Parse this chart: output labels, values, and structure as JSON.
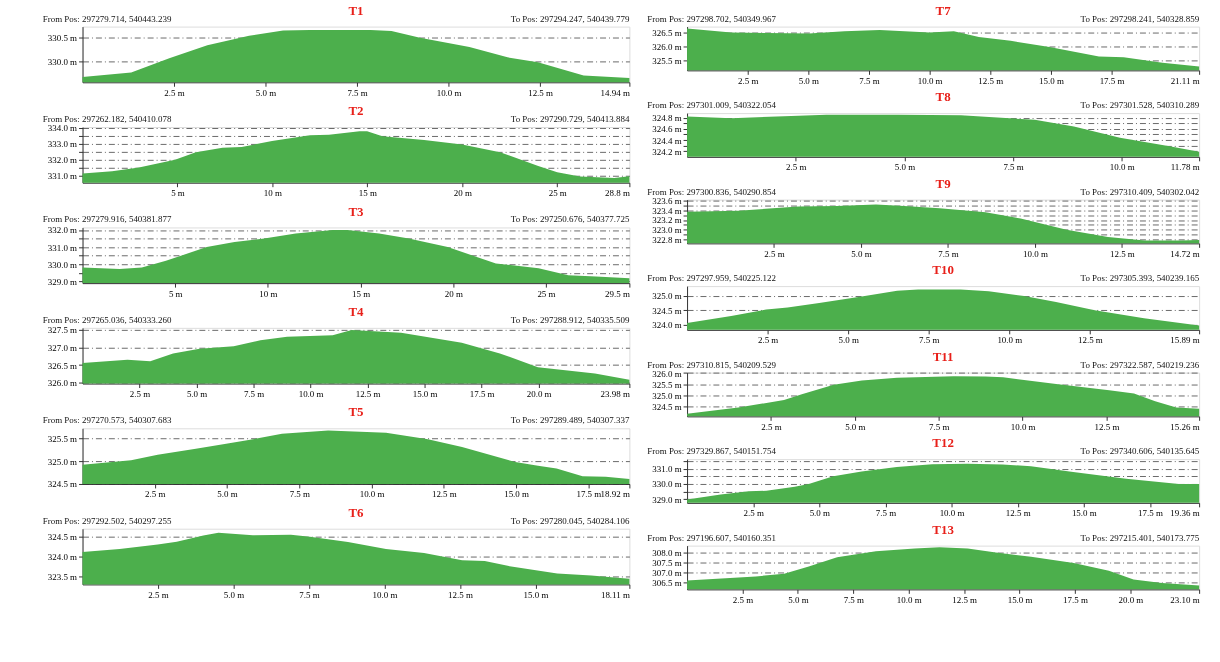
{
  "chart_data": [
    {
      "type": "area",
      "title": "T1",
      "annotations": [
        "From Pos: 297279.714, 540443.239",
        "To Pos: 297294.247, 540439.779"
      ],
      "x": [
        0,
        1.33,
        2.37,
        3.41,
        4.55,
        5.48,
        6.21,
        7.87,
        8.44,
        9.22,
        10.57,
        11.61,
        12.44,
        13.69,
        14.94
      ],
      "series": [
        {
          "color": "#4caf4c",
          "values": [
            329.69,
            329.78,
            330.07,
            330.34,
            330.53,
            330.64,
            330.65,
            330.65,
            330.63,
            330.49,
            330.3,
            330.09,
            329.99,
            329.72,
            329.67
          ]
        }
      ],
      "xlim": [
        0,
        14.94
      ],
      "xticks": [
        {
          "value": 2.5,
          "label": "2.5 m"
        },
        {
          "value": 5,
          "label": "5.0 m"
        },
        {
          "value": 7.5,
          "label": "7.5 m"
        },
        {
          "value": 10,
          "label": "10.0 m"
        },
        {
          "value": 12.5,
          "label": "12.5 m"
        },
        {
          "value": 14.94,
          "label": "14.94 m"
        }
      ],
      "ylim": [
        329.58,
        330.72
      ],
      "yticks": [
        {
          "value": 330.0,
          "label": "330.0 m"
        },
        {
          "value": 330.5,
          "label": "330.5 m"
        }
      ],
      "grid": "y"
    },
    {
      "type": "area",
      "title": "T2",
      "annotations": [
        "From Pos: 297262.182, 540410.078",
        "To Pos: 297290.729, 540413.884"
      ],
      "x": [
        0,
        1.56,
        2.97,
        4.87,
        5.97,
        7.37,
        8.38,
        9.98,
        11.98,
        12.98,
        14.59,
        14.99,
        15.79,
        17.99,
        19.99,
        21.99,
        24.0,
        25.0,
        26.2,
        28.0,
        28.8
      ],
      "series": [
        {
          "color": "#4caf4c",
          "values": [
            331.15,
            331.28,
            331.52,
            332.0,
            332.48,
            332.76,
            332.8,
            333.17,
            333.54,
            333.57,
            333.78,
            333.78,
            333.48,
            333.24,
            332.96,
            332.48,
            331.61,
            331.22,
            330.96,
            330.87,
            330.98
          ]
        }
      ],
      "xlim": [
        0,
        28.8
      ],
      "xticks": [
        {
          "value": 5,
          "label": "5 m"
        },
        {
          "value": 10,
          "label": "10 m"
        },
        {
          "value": 15,
          "label": "15 m"
        },
        {
          "value": 20,
          "label": "20 m"
        },
        {
          "value": 25,
          "label": "25 m"
        },
        {
          "value": 28.8,
          "label": "28.8 m"
        }
      ],
      "ylim": [
        330.57,
        334.05
      ],
      "yticks": [
        {
          "value": 331.0,
          "label": "331.0 m"
        },
        {
          "value": 331.5,
          "label": null
        },
        {
          "value": 332.0,
          "label": "332.0 m"
        },
        {
          "value": 332.5,
          "label": null
        },
        {
          "value": 333.0,
          "label": "333.0 m"
        },
        {
          "value": 333.5,
          "label": null
        },
        {
          "value": 334.0,
          "label": "334.0 m"
        }
      ],
      "grid": "y"
    },
    {
      "type": "area",
      "title": "T3",
      "annotations": [
        "From Pos: 297279.916, 540381.877",
        "To Pos: 297250.676, 540377.725"
      ],
      "x": [
        0,
        2.0,
        3.2,
        4.5,
        6.7,
        8.2,
        9.8,
        11.5,
        13.5,
        14.3,
        16.0,
        17.6,
        19.7,
        22.3,
        24.6,
        26.2,
        27.7,
        29.5
      ],
      "series": [
        {
          "color": "#4caf4c",
          "values": [
            329.8,
            329.72,
            329.8,
            330.2,
            331.0,
            331.3,
            331.5,
            331.8,
            332.0,
            332.0,
            331.8,
            331.5,
            331.0,
            330.04,
            329.76,
            329.35,
            329.28,
            329.17
          ]
        }
      ],
      "xlim": [
        0,
        29.5
      ],
      "xticks": [
        {
          "value": 5,
          "label": "5 m"
        },
        {
          "value": 10,
          "label": "10 m"
        },
        {
          "value": 15,
          "label": "15 m"
        },
        {
          "value": 20,
          "label": "20 m"
        },
        {
          "value": 25,
          "label": "25 m"
        },
        {
          "value": 29.5,
          "label": "29.5 m"
        }
      ],
      "ylim": [
        328.89,
        332.15
      ],
      "yticks": [
        {
          "value": 329.0,
          "label": "329.0 m"
        },
        {
          "value": 329.5,
          "label": null
        },
        {
          "value": 330.0,
          "label": "330.0 m"
        },
        {
          "value": 330.5,
          "label": null
        },
        {
          "value": 331.0,
          "label": "331.0 m"
        },
        {
          "value": 331.5,
          "label": null
        },
        {
          "value": 332.0,
          "label": "332.0 m"
        }
      ],
      "grid": "y"
    },
    {
      "type": "area",
      "title": "T4",
      "annotations": [
        "From Pos: 297265.036, 540333.260",
        "To Pos: 297288.912, 540335.509"
      ],
      "x": [
        0,
        1.97,
        2.97,
        3.97,
        5.13,
        6.63,
        7.8,
        8.97,
        10.97,
        11.8,
        13.97,
        16.63,
        18.3,
        19.97,
        22.47,
        23.98
      ],
      "series": [
        {
          "color": "#4caf4c",
          "values": [
            326.56,
            326.65,
            326.61,
            326.83,
            326.96,
            327.03,
            327.2,
            327.3,
            327.34,
            327.49,
            327.41,
            327.13,
            326.83,
            326.44,
            326.26,
            326.09
          ]
        }
      ],
      "xlim": [
        0,
        23.98
      ],
      "xticks": [
        {
          "value": 2.5,
          "label": "2.5 m"
        },
        {
          "value": 5,
          "label": "5.0 m"
        },
        {
          "value": 7.5,
          "label": "7.5 m"
        },
        {
          "value": 10,
          "label": "10.0 m"
        },
        {
          "value": 12.5,
          "label": "12.5 m"
        },
        {
          "value": 15,
          "label": "15.0 m"
        },
        {
          "value": 17.5,
          "label": "17.5 m"
        },
        {
          "value": 20,
          "label": "20.0 m"
        },
        {
          "value": 23.98,
          "label": "23.98 m"
        }
      ],
      "ylim": [
        325.98,
        327.55
      ],
      "yticks": [
        {
          "value": 326.0,
          "label": "326.0 m"
        },
        {
          "value": 326.5,
          "label": "326.5 m"
        },
        {
          "value": 327.0,
          "label": "327.0 m"
        },
        {
          "value": 327.5,
          "label": "327.5 m"
        }
      ],
      "grid": "y"
    },
    {
      "type": "area",
      "title": "T5",
      "annotations": [
        "From Pos: 297270.573, 540307.683",
        "To Pos: 297289.489, 540307.337"
      ],
      "x": [
        0,
        1.68,
        2.6,
        3.92,
        4.97,
        5.9,
        6.9,
        8.5,
        10.5,
        11.95,
        13.13,
        14.97,
        15.76,
        16.4,
        17.3,
        18.1,
        18.92
      ],
      "series": [
        {
          "color": "#4caf4c",
          "values": [
            324.92,
            325.02,
            325.14,
            325.27,
            325.38,
            325.48,
            325.6,
            325.67,
            325.62,
            325.48,
            325.31,
            324.98,
            324.9,
            324.84,
            324.67,
            324.66,
            324.61
          ]
        }
      ],
      "xlim": [
        0,
        18.92
      ],
      "xticks": [
        {
          "value": 2.5,
          "label": "2.5 m"
        },
        {
          "value": 5,
          "label": "5.0 m"
        },
        {
          "value": 7.5,
          "label": "7.5 m"
        },
        {
          "value": 10,
          "label": "10.0 m"
        },
        {
          "value": 12.5,
          "label": "12.5 m"
        },
        {
          "value": 15,
          "label": "15.0 m"
        },
        {
          "value": 17.5,
          "label": "17.5 m"
        },
        {
          "value": 18.92,
          "label": "18.92 m"
        }
      ],
      "ylim": [
        324.5,
        325.72
      ],
      "yticks": [
        {
          "value": 324.5,
          "label": "324.5 m"
        },
        {
          "value": 325.0,
          "label": "325.0 m"
        },
        {
          "value": 325.5,
          "label": "325.5 m"
        }
      ],
      "grid": "y"
    },
    {
      "type": "area",
      "title": "T6",
      "annotations": [
        "From Pos: 297292.502, 540297.255",
        "To Pos: 297280.045, 540284.106"
      ],
      "x": [
        0,
        1.23,
        2.49,
        3.12,
        4.0,
        4.5,
        5.64,
        6.9,
        7.53,
        8.79,
        10.05,
        11.31,
        12.57,
        13.32,
        14.08,
        15.72,
        16.85,
        17.61,
        18.11
      ],
      "series": [
        {
          "color": "#4caf4c",
          "values": [
            324.11,
            324.19,
            324.3,
            324.37,
            324.52,
            324.59,
            324.53,
            324.54,
            324.49,
            324.36,
            324.19,
            324.09,
            323.91,
            323.89,
            323.77,
            323.58,
            323.53,
            323.48,
            323.45
          ]
        }
      ],
      "xlim": [
        0,
        18.11
      ],
      "xticks": [
        {
          "value": 2.5,
          "label": "2.5 m"
        },
        {
          "value": 5,
          "label": "5.0 m"
        },
        {
          "value": 7.5,
          "label": "7.5 m"
        },
        {
          "value": 10,
          "label": "10.0 m"
        },
        {
          "value": 12.5,
          "label": "12.5 m"
        },
        {
          "value": 15,
          "label": "15.0 m"
        },
        {
          "value": 18.11,
          "label": "18.11 m"
        }
      ],
      "ylim": [
        323.31,
        324.69
      ],
      "yticks": [
        {
          "value": 323.5,
          "label": "323.5 m"
        },
        {
          "value": 324.0,
          "label": "324.0 m"
        },
        {
          "value": 324.5,
          "label": "324.5 m"
        }
      ],
      "grid": "y"
    },
    {
      "type": "area",
      "title": "T7",
      "annotations": [
        "From Pos: 297298.702, 540349.967",
        "To Pos: 297298.241, 540328.859"
      ],
      "x": [
        0,
        1.82,
        3.28,
        5.03,
        6.49,
        7.94,
        9.99,
        11.0,
        12.03,
        13.34,
        14.94,
        16.98,
        18.0,
        19.6,
        21.11
      ],
      "series": [
        {
          "color": "#4caf4c",
          "values": [
            326.66,
            326.52,
            326.5,
            326.48,
            326.56,
            326.61,
            326.52,
            326.56,
            326.36,
            326.22,
            326.0,
            325.66,
            325.63,
            325.43,
            325.3
          ]
        }
      ],
      "xlim": [
        0,
        21.11
      ],
      "xticks": [
        {
          "value": 2.5,
          "label": "2.5 m"
        },
        {
          "value": 5,
          "label": "5.0 m"
        },
        {
          "value": 7.5,
          "label": "7.5 m"
        },
        {
          "value": 10,
          "label": "10.0 m"
        },
        {
          "value": 12.5,
          "label": "12.5 m"
        },
        {
          "value": 15,
          "label": "15.0 m"
        },
        {
          "value": 17.5,
          "label": "17.5 m"
        },
        {
          "value": 21.11,
          "label": "21.11 m"
        }
      ],
      "ylim": [
        325.16,
        326.73
      ],
      "yticks": [
        {
          "value": 325.5,
          "label": "325.5 m"
        },
        {
          "value": 326.0,
          "label": "326.0 m"
        },
        {
          "value": 326.5,
          "label": "326.5 m"
        }
      ],
      "grid": "y"
    },
    {
      "type": "area",
      "title": "T8",
      "annotations": [
        "From Pos: 297301.009, 540322.054",
        "To Pos: 297301.528, 540310.289"
      ],
      "x": [
        0,
        1.02,
        2.4,
        3.21,
        4.84,
        6.3,
        6.95,
        8.0,
        8.9,
        9.96,
        11.1,
        11.78
      ],
      "series": [
        {
          "color": "#4caf4c",
          "values": [
            324.82,
            324.79,
            324.83,
            324.85,
            324.85,
            324.84,
            324.81,
            324.76,
            324.64,
            324.44,
            324.29,
            324.19
          ]
        }
      ],
      "xlim": [
        0,
        11.78
      ],
      "xticks": [
        {
          "value": 2.5,
          "label": "2.5 m"
        },
        {
          "value": 5,
          "label": "5.0 m"
        },
        {
          "value": 7.5,
          "label": "7.5 m"
        },
        {
          "value": 10,
          "label": "10.0 m"
        },
        {
          "value": 11.78,
          "label": "11.78 m"
        }
      ],
      "ylim": [
        324.1,
        324.88
      ],
      "yticks": [
        {
          "value": 324.2,
          "label": "324.2 m"
        },
        {
          "value": 324.3,
          "label": null
        },
        {
          "value": 324.4,
          "label": "324.4 m"
        },
        {
          "value": 324.5,
          "label": null
        },
        {
          "value": 324.6,
          "label": "324.6 m"
        },
        {
          "value": 324.7,
          "label": null
        },
        {
          "value": 324.8,
          "label": "324.8 m"
        }
      ],
      "grid": "y"
    },
    {
      "type": "area",
      "title": "T9",
      "annotations": [
        "From Pos: 297300.836, 540290.854",
        "To Pos: 297310.409, 540302.042"
      ],
      "x": [
        0,
        1.47,
        3.2,
        4.31,
        5.43,
        6.24,
        7.26,
        8.58,
        9.59,
        10.91,
        12.1,
        13.15,
        14.2,
        14.72
      ],
      "series": [
        {
          "color": "#4caf4c",
          "values": [
            323.37,
            323.39,
            323.48,
            323.49,
            323.52,
            323.49,
            323.44,
            323.36,
            323.23,
            323.0,
            322.85,
            322.78,
            322.78,
            322.79
          ]
        }
      ],
      "xlim": [
        0,
        14.72
      ],
      "xticks": [
        {
          "value": 2.5,
          "label": "2.5 m"
        },
        {
          "value": 5,
          "label": "5.0 m"
        },
        {
          "value": 7.5,
          "label": "7.5 m"
        },
        {
          "value": 10,
          "label": "10.0 m"
        },
        {
          "value": 12.5,
          "label": "12.5 m"
        },
        {
          "value": 14.72,
          "label": "14.72 m"
        }
      ],
      "ylim": [
        322.72,
        323.62
      ],
      "yticks": [
        {
          "value": 322.8,
          "label": "322.8 m"
        },
        {
          "value": 322.9,
          "label": null
        },
        {
          "value": 323.0,
          "label": "323.0 m"
        },
        {
          "value": 323.1,
          "label": null
        },
        {
          "value": 323.2,
          "label": "323.2 m"
        },
        {
          "value": 323.3,
          "label": null
        },
        {
          "value": 323.4,
          "label": "323.4 m"
        },
        {
          "value": 323.5,
          "label": null
        },
        {
          "value": 323.6,
          "label": "323.6 m"
        }
      ],
      "grid": "y"
    },
    {
      "type": "area",
      "title": "T10",
      "annotations": [
        "From Pos: 297297.959, 540225.122",
        "To Pos: 297305.393, 540239.165"
      ],
      "x": [
        0,
        1.37,
        2.46,
        3.12,
        4.1,
        5.42,
        6.52,
        7.17,
        8.49,
        9.36,
        10.46,
        11.45,
        12.65,
        14.18,
        15.89
      ],
      "series": [
        {
          "color": "#4caf4c",
          "values": [
            324.07,
            324.31,
            324.53,
            324.6,
            324.76,
            324.98,
            325.18,
            325.22,
            325.22,
            325.16,
            325.0,
            324.79,
            324.51,
            324.23,
            323.98
          ]
        }
      ],
      "xlim": [
        0,
        15.89
      ],
      "xticks": [
        {
          "value": 2.5,
          "label": "2.5 m"
        },
        {
          "value": 5,
          "label": "5.0 m"
        },
        {
          "value": 7.5,
          "label": "7.5 m"
        },
        {
          "value": 10,
          "label": "10.0 m"
        },
        {
          "value": 12.5,
          "label": "12.5 m"
        },
        {
          "value": 15.89,
          "label": "15.89 m"
        }
      ],
      "ylim": [
        323.83,
        325.34
      ],
      "yticks": [
        {
          "value": 324.0,
          "label": "324.0 m"
        },
        {
          "value": 324.5,
          "label": "324.5 m"
        },
        {
          "value": 325.0,
          "label": "325.0 m"
        }
      ],
      "grid": "y"
    },
    {
      "type": "area",
      "title": "T11",
      "annotations": [
        "From Pos: 297310.815, 540209.529",
        "To Pos: 297322.587, 540219.236"
      ],
      "x": [
        0,
        1.53,
        2.89,
        3.42,
        4.37,
        5.21,
        6.26,
        7.95,
        8.89,
        9.42,
        11.0,
        12.58,
        13.32,
        13.95,
        14.58,
        15.26
      ],
      "series": [
        {
          "color": "#4caf4c",
          "values": [
            324.19,
            324.46,
            324.8,
            325.05,
            325.48,
            325.67,
            325.79,
            325.86,
            325.85,
            325.81,
            325.51,
            325.23,
            325.09,
            324.74,
            324.47,
            324.41
          ]
        }
      ],
      "xlim": [
        0,
        15.26
      ],
      "xticks": [
        {
          "value": 2.5,
          "label": "2.5 m"
        },
        {
          "value": 5,
          "label": "5.0 m"
        },
        {
          "value": 7.5,
          "label": "7.5 m"
        },
        {
          "value": 10,
          "label": "10.0 m"
        },
        {
          "value": 12.5,
          "label": "12.5 m"
        },
        {
          "value": 15.26,
          "label": "15.26 m"
        }
      ],
      "ylim": [
        324.07,
        326.02
      ],
      "yticks": [
        {
          "value": 324.5,
          "label": "324.5 m"
        },
        {
          "value": 325.0,
          "label": "325.0 m"
        },
        {
          "value": 325.5,
          "label": "325.5 m"
        },
        {
          "value": 326.0,
          "label": "326.0 m"
        }
      ],
      "grid": "y"
    },
    {
      "type": "area",
      "title": "T12",
      "annotations": [
        "From Pos: 297329.867, 540151.754",
        "To Pos: 297340.606, 540135.645"
      ],
      "x": [
        0,
        1.27,
        2.33,
        3.0,
        4.07,
        4.6,
        5.53,
        6.6,
        7.93,
        9.27,
        10.6,
        11.93,
        13.0,
        14.6,
        16.6,
        18.6,
        19.36
      ],
      "series": [
        {
          "color": "#4caf4c",
          "values": [
            328.98,
            329.3,
            329.52,
            329.55,
            329.81,
            330.0,
            330.5,
            330.81,
            331.1,
            331.28,
            331.31,
            331.26,
            331.16,
            330.78,
            330.33,
            330.0,
            330.0
          ]
        }
      ],
      "xlim": [
        0,
        19.36
      ],
      "xticks": [
        {
          "value": 2.5,
          "label": "2.5 m"
        },
        {
          "value": 5,
          "label": "5.0 m"
        },
        {
          "value": 7.5,
          "label": "7.5 m"
        },
        {
          "value": 10,
          "label": "10.0 m"
        },
        {
          "value": 12.5,
          "label": "12.5 m"
        },
        {
          "value": 15,
          "label": "15.0 m"
        },
        {
          "value": 17.5,
          "label": "17.5 m"
        },
        {
          "value": 19.36,
          "label": "19.36 m"
        }
      ],
      "ylim": [
        328.76,
        331.62
      ],
      "yticks": [
        {
          "value": 329.0,
          "label": "329.0 m"
        },
        {
          "value": 329.5,
          "label": null
        },
        {
          "value": 330.0,
          "label": "330.0 m"
        },
        {
          "value": 330.5,
          "label": null
        },
        {
          "value": 331.0,
          "label": "331.0 m"
        },
        {
          "value": 331.5,
          "label": null
        }
      ],
      "grid": "y"
    },
    {
      "type": "area",
      "title": "T13",
      "annotations": [
        "From Pos: 297196.607, 540160.351",
        "To Pos: 297215.401, 540173.775"
      ],
      "x": [
        0,
        3.1,
        4.38,
        5.49,
        6.77,
        8.52,
        10.27,
        11.39,
        12.66,
        13.93,
        15.52,
        17.44,
        19.03,
        20.14,
        21.42,
        23.1
      ],
      "series": [
        {
          "color": "#4caf4c",
          "values": [
            306.6,
            306.8,
            306.94,
            307.3,
            307.76,
            308.07,
            308.21,
            308.27,
            308.21,
            308.0,
            307.79,
            307.47,
            307.08,
            306.65,
            306.47,
            306.34
          ]
        }
      ],
      "xlim": [
        0,
        23.1
      ],
      "xticks": [
        {
          "value": 2.5,
          "label": "2.5 m"
        },
        {
          "value": 5,
          "label": "5.0 m"
        },
        {
          "value": 7.5,
          "label": "7.5 m"
        },
        {
          "value": 10,
          "label": "10.0 m"
        },
        {
          "value": 12.5,
          "label": "12.5 m"
        },
        {
          "value": 15,
          "label": "15.0 m"
        },
        {
          "value": 17.5,
          "label": "17.5 m"
        },
        {
          "value": 20,
          "label": "20.0 m"
        },
        {
          "value": 23.1,
          "label": "23.10 m"
        }
      ],
      "ylim": [
        306.15,
        308.35
      ],
      "yticks": [
        {
          "value": 306.5,
          "label": "306.5 m"
        },
        {
          "value": 307.0,
          "label": "307.0 m"
        },
        {
          "value": 307.5,
          "label": "307.5 m"
        },
        {
          "value": 308.0,
          "label": "308.0 m"
        }
      ],
      "grid": "y"
    }
  ]
}
